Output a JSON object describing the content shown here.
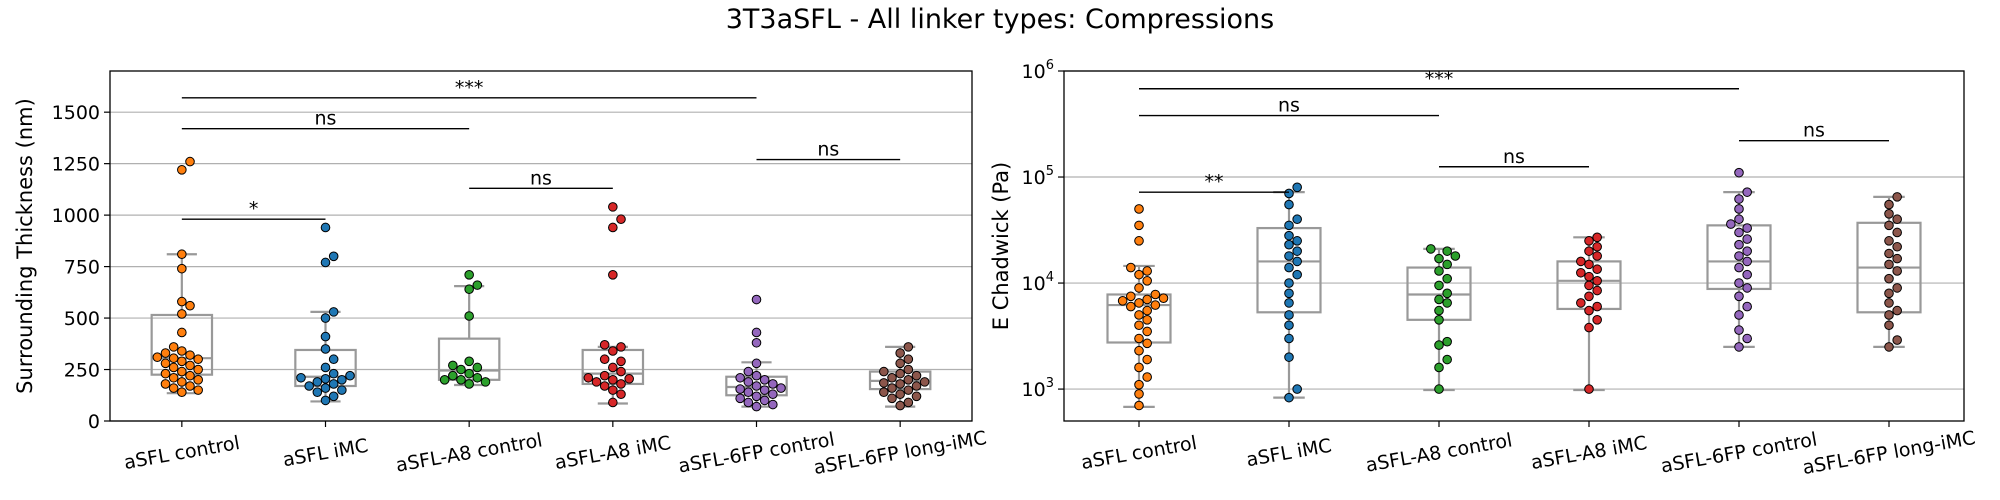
{
  "suptitle": "3T3aSFL - All linker types: Compressions",
  "colors": {
    "groups": [
      "#ff7f0e",
      "#1f77b4",
      "#2ca02c",
      "#d62728",
      "#9467bd",
      "#8c564b"
    ],
    "box": "#999999",
    "grid": "#b0b0b0"
  },
  "chart_data": [
    {
      "type": "box",
      "ylabel": "Surrounding Thickness (nm)",
      "yscale": "linear",
      "ylim": [
        0,
        1700
      ],
      "yticks": [
        0,
        250,
        500,
        750,
        1000,
        1250,
        1500
      ],
      "ytick_labels": [
        "0",
        "250",
        "500",
        "750",
        "1000",
        "1250",
        "1500"
      ],
      "grid": "horizontal",
      "categories": [
        "aSFL control",
        "aSFL iMC",
        "aSFL-A8 control",
        "aSFL-A8 iMC",
        "aSFL-6FP control",
        "aSFL-6FP long-iMC"
      ],
      "boxes": [
        {
          "whislo": 135,
          "q1": 225,
          "med": 305,
          "q3": 515,
          "whishi": 810
        },
        {
          "whislo": 95,
          "q1": 170,
          "med": 215,
          "q3": 345,
          "whishi": 530
        },
        {
          "whislo": 175,
          "q1": 200,
          "med": 245,
          "q3": 400,
          "whishi": 655
        },
        {
          "whislo": 85,
          "q1": 180,
          "med": 230,
          "q3": 345,
          "whishi": 360
        },
        {
          "whislo": 70,
          "q1": 125,
          "med": 165,
          "q3": 215,
          "whishi": 285
        },
        {
          "whislo": 70,
          "q1": 155,
          "med": 195,
          "q3": 240,
          "whishi": 360
        }
      ],
      "points": [
        [
          140,
          150,
          160,
          170,
          180,
          190,
          200,
          210,
          220,
          230,
          240,
          250,
          260,
          270,
          280,
          290,
          300,
          305,
          310,
          320,
          330,
          340,
          360,
          430,
          520,
          560,
          580,
          740,
          810,
          1220,
          1260
        ],
        [
          100,
          120,
          140,
          150,
          160,
          170,
          180,
          190,
          200,
          205,
          210,
          220,
          230,
          260,
          300,
          350,
          410,
          500,
          530,
          770,
          800,
          940
        ],
        [
          180,
          190,
          200,
          200,
          210,
          220,
          230,
          250,
          260,
          270,
          290,
          510,
          640,
          660,
          710
        ],
        [
          90,
          130,
          150,
          170,
          180,
          190,
          200,
          205,
          210,
          220,
          240,
          260,
          290,
          300,
          340,
          360,
          370,
          710,
          940,
          980,
          1040
        ],
        [
          70,
          80,
          90,
          100,
          110,
          120,
          130,
          140,
          150,
          155,
          160,
          170,
          180,
          190,
          200,
          210,
          220,
          240,
          280,
          380,
          430,
          590
        ],
        [
          75,
          90,
          110,
          120,
          130,
          140,
          150,
          160,
          170,
          180,
          185,
          190,
          200,
          210,
          220,
          230,
          240,
          250,
          280,
          300,
          330,
          360
        ]
      ],
      "annotations": [
        {
          "from": 0,
          "to": 1,
          "y": 980,
          "label": "*"
        },
        {
          "from": 2,
          "to": 3,
          "y": 1130,
          "label": "ns"
        },
        {
          "from": 4,
          "to": 5,
          "y": 1270,
          "label": "ns"
        },
        {
          "from": 0,
          "to": 2,
          "y": 1420,
          "label": "ns"
        },
        {
          "from": 0,
          "to": 4,
          "y": 1570,
          "label": "***"
        }
      ]
    },
    {
      "type": "box",
      "ylabel": "E Chadwick (Pa)",
      "yscale": "log",
      "ylim": [
        500,
        1000000
      ],
      "yticks": [
        1000,
        10000,
        100000,
        1000000
      ],
      "ytick_labels": [
        {
          "base": "10",
          "exp": "3"
        },
        {
          "base": "10",
          "exp": "4"
        },
        {
          "base": "10",
          "exp": "5"
        },
        {
          "base": "10",
          "exp": "6"
        }
      ],
      "grid": "horizontal",
      "categories": [
        "aSFL control",
        "aSFL iMC",
        "aSFL-A8 control",
        "aSFL-A8 iMC",
        "aSFL-6FP control",
        "aSFL-6FP long-iMC"
      ],
      "boxes": [
        {
          "whislo": 680,
          "q1": 2750,
          "med": 6200,
          "q3": 7800,
          "whishi": 14500
        },
        {
          "whislo": 830,
          "q1": 5300,
          "med": 16000,
          "q3": 33000,
          "whishi": 72000
        },
        {
          "whislo": 980,
          "q1": 4500,
          "med": 7800,
          "q3": 14000,
          "whishi": 21000
        },
        {
          "whislo": 980,
          "q1": 5700,
          "med": 10500,
          "q3": 16000,
          "whishi": 27000
        },
        {
          "whislo": 2500,
          "q1": 8800,
          "med": 16000,
          "q3": 35000,
          "whishi": 72000
        },
        {
          "whislo": 2500,
          "q1": 5300,
          "med": 14000,
          "q3": 37000,
          "whishi": 65000
        }
      ],
      "points": [
        [
          700,
          900,
          1100,
          1300,
          1600,
          1900,
          2300,
          2700,
          3000,
          3500,
          4000,
          4500,
          5000,
          5500,
          6000,
          6200,
          6500,
          6800,
          7000,
          7200,
          7500,
          7800,
          9000,
          10500,
          12000,
          13000,
          14000,
          25000,
          35000,
          50000
        ],
        [
          830,
          1000,
          2000,
          3000,
          4000,
          5000,
          6500,
          8000,
          10000,
          12000,
          14000,
          16000,
          18000,
          20000,
          23000,
          25000,
          28000,
          35000,
          40000,
          55000,
          70000,
          80000
        ],
        [
          1000,
          1600,
          1900,
          2600,
          2800,
          4500,
          5500,
          6500,
          7000,
          8000,
          9500,
          11000,
          13000,
          15000,
          17000,
          18000,
          20000,
          21000
        ],
        [
          1000,
          3800,
          4500,
          5500,
          6000,
          6500,
          7500,
          8500,
          9500,
          10500,
          11500,
          12500,
          13500,
          15000,
          16000,
          18000,
          20000,
          22000,
          25000,
          27000
        ],
        [
          2500,
          3000,
          3600,
          5000,
          6000,
          7500,
          9000,
          10000,
          12000,
          14000,
          16000,
          18000,
          20000,
          23000,
          26000,
          30000,
          33000,
          36000,
          40000,
          50000,
          62000,
          72000,
          110000
        ],
        [
          2500,
          2900,
          4000,
          5000,
          5500,
          6500,
          8000,
          9000,
          11000,
          13000,
          15000,
          17000,
          19000,
          22000,
          25000,
          30000,
          35000,
          40000,
          45000,
          55000,
          65000
        ]
      ],
      "annotations": [
        {
          "from": 0,
          "to": 1,
          "y": 72000,
          "label": "**"
        },
        {
          "from": 2,
          "to": 3,
          "y": 125000,
          "label": "ns"
        },
        {
          "from": 4,
          "to": 5,
          "y": 220000,
          "label": "ns"
        },
        {
          "from": 0,
          "to": 2,
          "y": 380000,
          "label": "ns"
        },
        {
          "from": 0,
          "to": 4,
          "y": 680000,
          "label": "***"
        }
      ]
    }
  ]
}
